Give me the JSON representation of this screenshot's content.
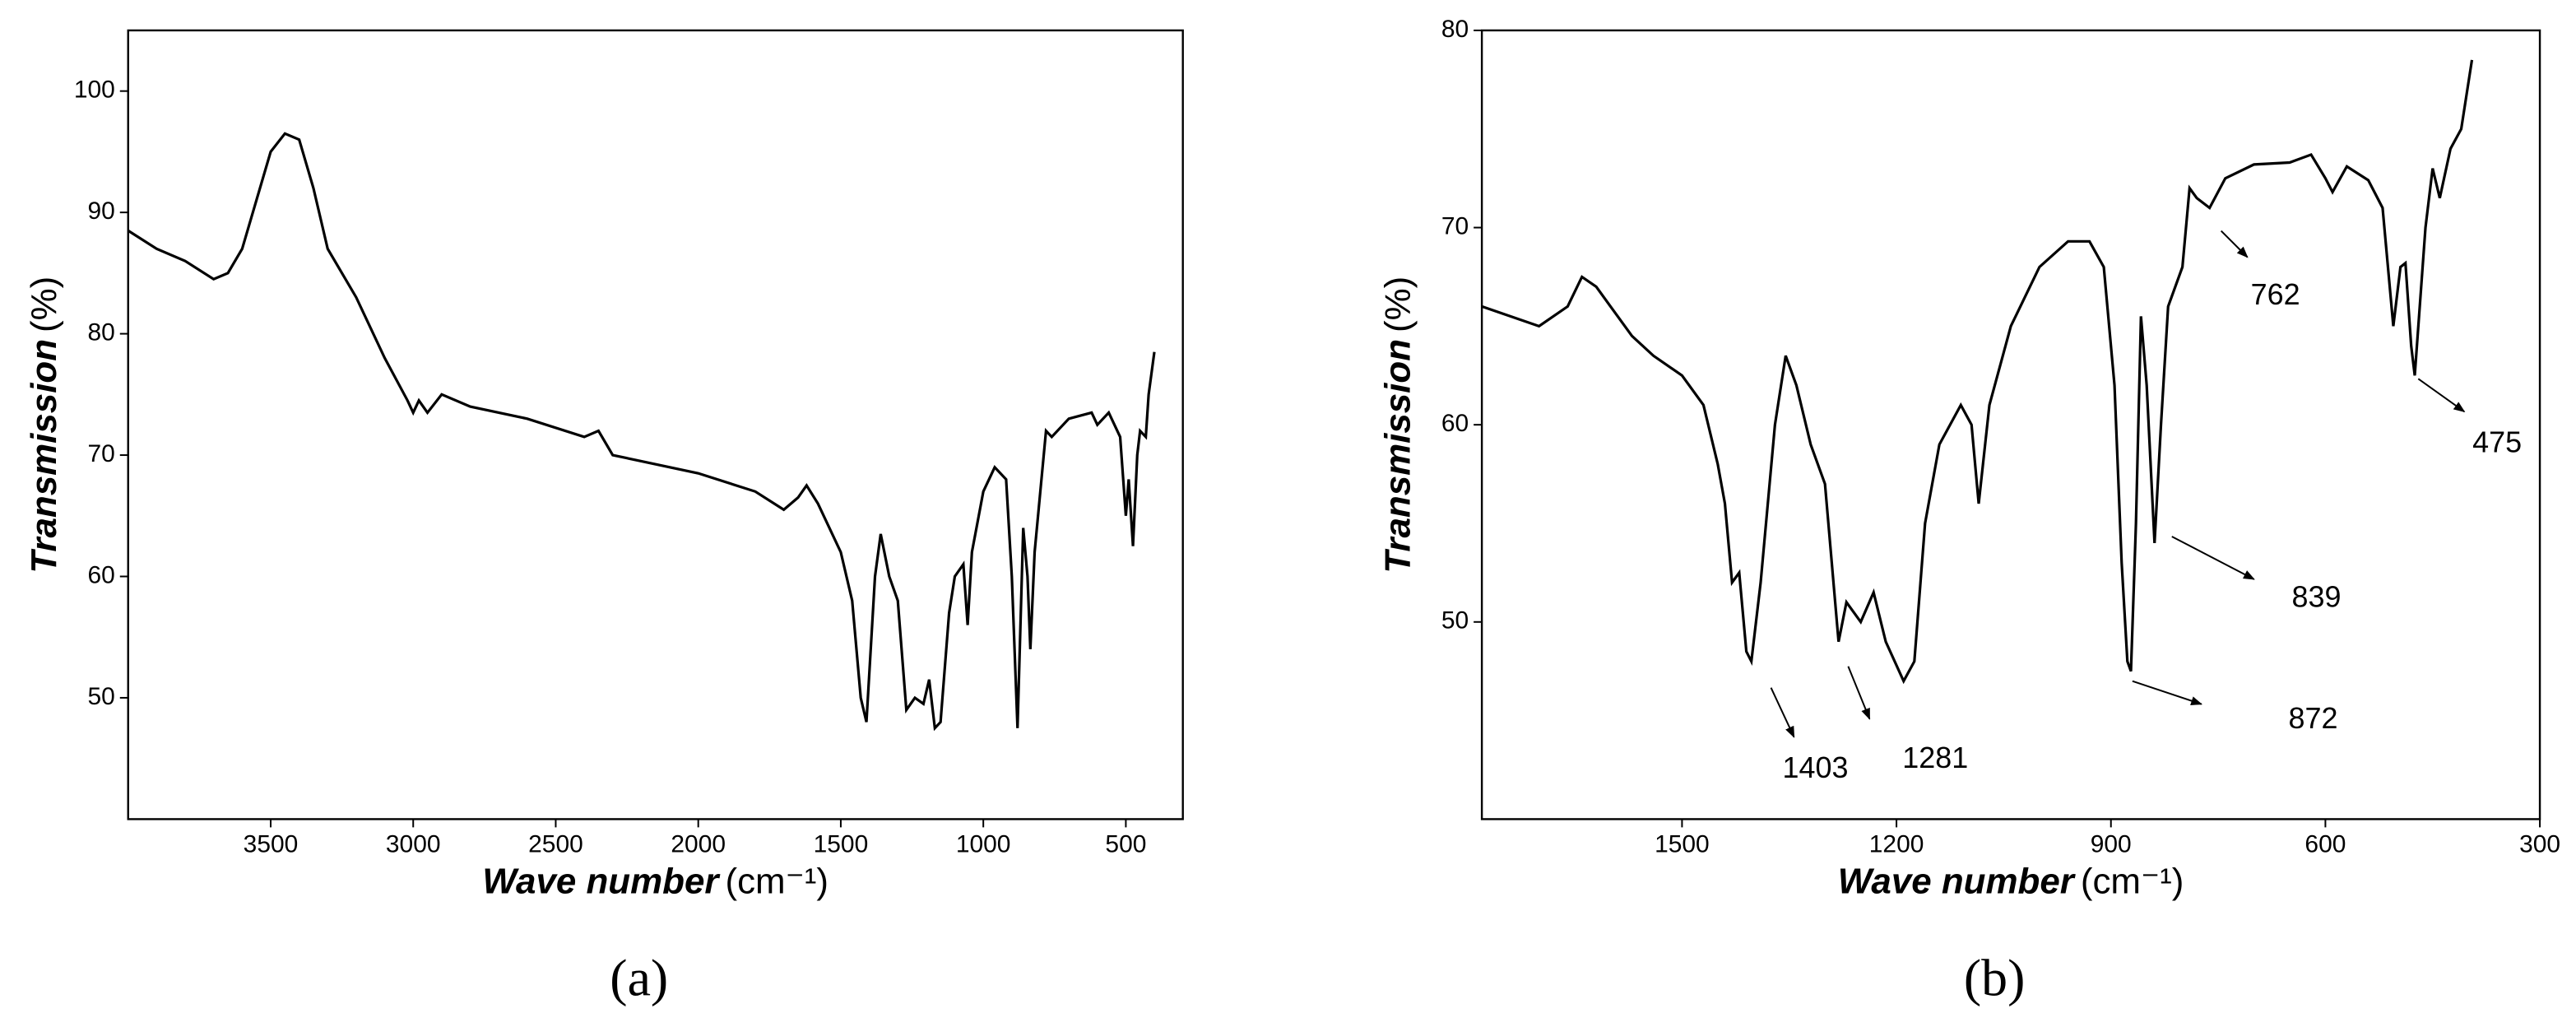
{
  "chart_data": [
    {
      "type": "line",
      "caption": "(a)",
      "color": "#000000",
      "ylabel": {
        "name": "Transmission",
        "unit": "(%)"
      },
      "xlabel": {
        "name": "Wave number",
        "unit": "(cm⁻¹)"
      },
      "xlim": [
        4000,
        300
      ],
      "xticks": [
        3500,
        3000,
        2500,
        2000,
        1500,
        1000,
        500
      ],
      "ylim": [
        40,
        105
      ],
      "yticks": [
        50,
        60,
        70,
        80,
        90,
        100
      ],
      "x": [
        4000,
        3900,
        3800,
        3700,
        3650,
        3600,
        3550,
        3500,
        3450,
        3400,
        3350,
        3300,
        3200,
        3100,
        3020,
        3000,
        2980,
        2950,
        2900,
        2800,
        2600,
        2400,
        2350,
        2300,
        2200,
        2000,
        1800,
        1700,
        1650,
        1620,
        1580,
        1500,
        1460,
        1430,
        1410,
        1380,
        1360,
        1330,
        1300,
        1270,
        1240,
        1210,
        1190,
        1170,
        1150,
        1120,
        1100,
        1070,
        1055,
        1040,
        1000,
        960,
        920,
        900,
        880,
        860,
        845,
        835,
        820,
        800,
        780,
        760,
        700,
        620,
        600,
        560,
        520,
        500,
        490,
        475,
        460,
        450,
        430,
        420,
        400
      ],
      "values": [
        88.5,
        87,
        86,
        84.5,
        85,
        87,
        91,
        95,
        96.5,
        96,
        92,
        87,
        83,
        78,
        74.5,
        73.5,
        74.5,
        73.5,
        75,
        74,
        73,
        71.5,
        72,
        70,
        69.5,
        68.5,
        67,
        65.5,
        66.5,
        67.5,
        66,
        62,
        58,
        50,
        48,
        60,
        63.5,
        60,
        58,
        49,
        50,
        49.5,
        51.5,
        47.5,
        48,
        57,
        60,
        61,
        56,
        62,
        67,
        69,
        68,
        60,
        47.5,
        64,
        60,
        54,
        62,
        67,
        72,
        71.5,
        73,
        73.5,
        72.5,
        73.5,
        71.5,
        65,
        68,
        62.5,
        70,
        72,
        71.5,
        75,
        78.5
      ]
    },
    {
      "type": "line",
      "caption": "(b)",
      "color": "#000000",
      "ylabel": {
        "name": "Transmission",
        "unit": "(%)"
      },
      "xlabel": {
        "name": "Wave number",
        "unit": "(cm⁻¹)"
      },
      "xlim": [
        1780,
        300
      ],
      "xticks": [
        1500,
        1200,
        900,
        600,
        300
      ],
      "ylim": [
        40,
        80
      ],
      "yticks": [
        50,
        60,
        70,
        80
      ],
      "annotations": [
        "1403",
        "1281",
        "872",
        "839",
        "762",
        "475"
      ],
      "x": [
        1780,
        1740,
        1700,
        1660,
        1640,
        1620,
        1600,
        1570,
        1540,
        1500,
        1470,
        1450,
        1440,
        1430,
        1420,
        1410,
        1403,
        1390,
        1370,
        1355,
        1340,
        1320,
        1300,
        1281,
        1270,
        1250,
        1232,
        1215,
        1190,
        1175,
        1160,
        1140,
        1110,
        1095,
        1085,
        1070,
        1040,
        1000,
        960,
        930,
        910,
        895,
        885,
        877,
        872,
        865,
        858,
        850,
        839,
        830,
        820,
        800,
        790,
        780,
        762,
        740,
        700,
        650,
        620,
        600,
        590,
        570,
        540,
        520,
        505,
        495,
        488,
        480,
        475,
        460,
        450,
        440,
        425,
        410,
        395
      ],
      "values": [
        66,
        65.5,
        65,
        66,
        67.5,
        67,
        66,
        64.5,
        63.5,
        62.5,
        61,
        58,
        56,
        52,
        52.5,
        48.5,
        48,
        52,
        60,
        63.5,
        62,
        59,
        57,
        49,
        51,
        50,
        51.5,
        49,
        47,
        48,
        55,
        59,
        61,
        60,
        56,
        61,
        65,
        68,
        69.3,
        69.3,
        68,
        62,
        53,
        48,
        47.5,
        55,
        65.5,
        62,
        54,
        60,
        66,
        68,
        72,
        71.5,
        71,
        72.5,
        73.2,
        73.3,
        73.7,
        72.5,
        71.8,
        73.1,
        72.4,
        71,
        65,
        68,
        68.2,
        64,
        62.5,
        70,
        73,
        71.5,
        74,
        75,
        78.5
      ]
    }
  ]
}
